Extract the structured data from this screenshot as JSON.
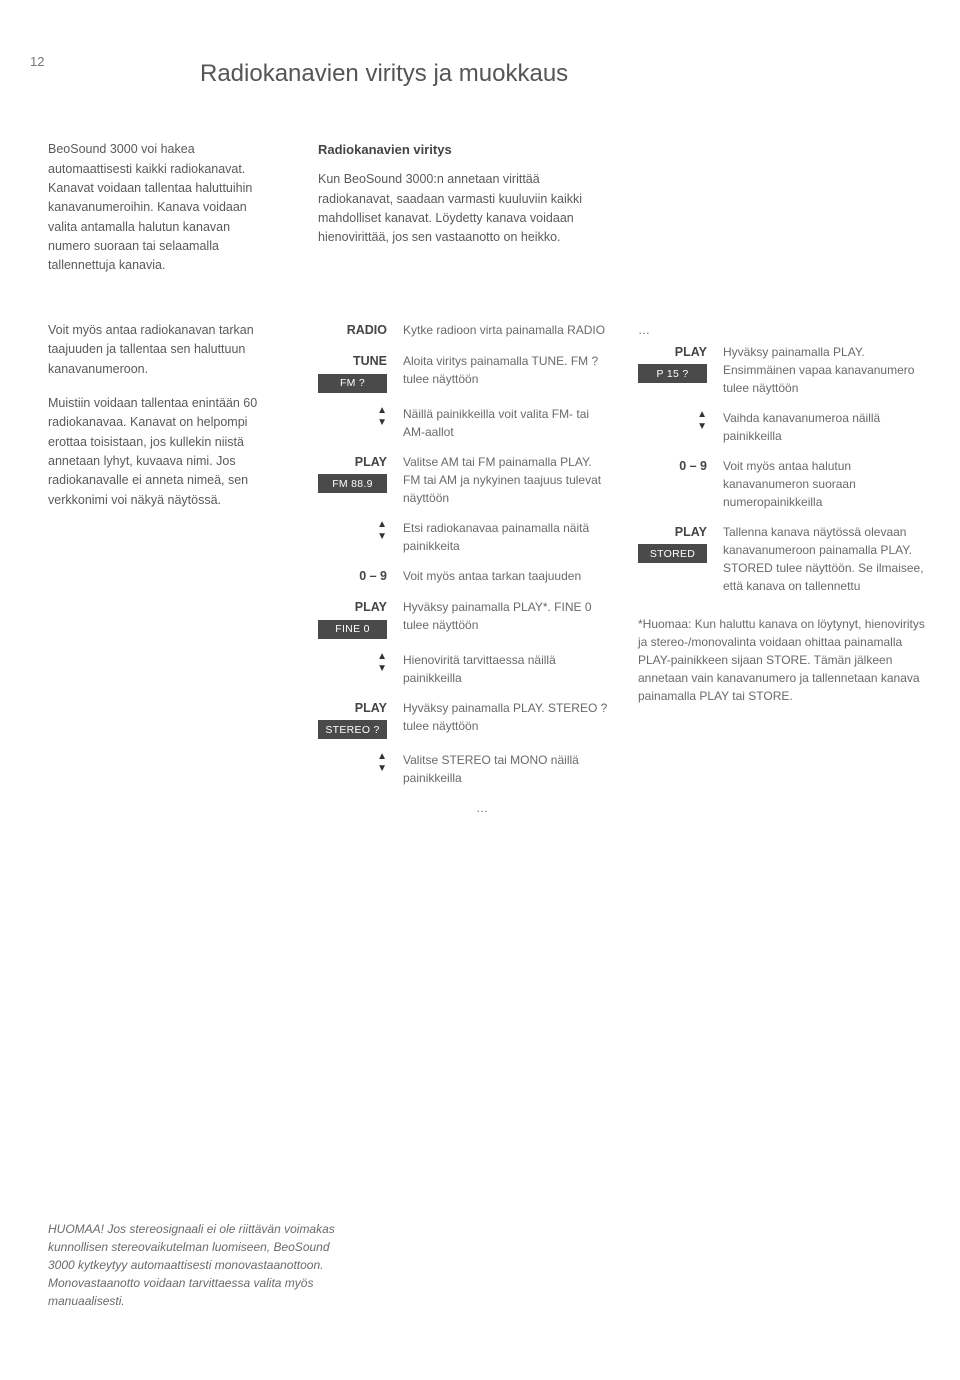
{
  "page_number": "12",
  "title": "Radiokanavien viritys ja muokkaus",
  "intro_left": {
    "p1": "BeoSound 3000 voi hakea automaattisesti kaikki radiokanavat. Kanavat voidaan tallentaa haluttuihin kanavanumeroihin. Kanava voidaan valita antamalla halutun kanavan numero suoraan tai selaamalla tallennettuja kanavia."
  },
  "intro_right": {
    "heading": "Radiokanavien viritys",
    "p1": "Kun BeoSound 3000:n annetaan virittää radiokanavat, saadaan varmasti kuuluviin kaikki mahdolliset kanavat. Löydetty kanava voidaan hienovirittää, jos sen vastaanotto on heikko."
  },
  "side_text": {
    "p1": "Voit myös antaa radiokanavan tarkan taajuuden ja tallentaa sen haluttuun kanavanumeroon.",
    "p2": "Muistiin voidaan tallentaa enintään 60 radiokanavaa. Kanavat on helpompi erottaa toisistaan, jos kullekin niistä annetaan lyhyt, kuvaava nimi. Jos radiokanavalle ei anneta nimeä, sen verkkonimi voi näkyä näytössä."
  },
  "ellipsis": "…",
  "steps_left": [
    {
      "label": "RADIO",
      "disp": "",
      "arrows": false,
      "desc": "Kytke radioon virta painamalla RADIO"
    },
    {
      "label": "TUNE",
      "disp": "FM ?",
      "arrows": false,
      "desc": "Aloita viritys painamalla TUNE. FM ? tulee näyttöön"
    },
    {
      "label": "",
      "disp": "",
      "arrows": true,
      "desc": "Näillä painikkeilla voit valita FM- tai AM-aallot"
    },
    {
      "label": "PLAY",
      "disp": "FM 88.9",
      "arrows": false,
      "desc": "Valitse AM tai FM painamalla PLAY. FM tai AM ja nykyinen taajuus tulevat näyttöön"
    },
    {
      "label": "",
      "disp": "",
      "arrows": true,
      "desc": "Etsi radiokanavaa painamalla näitä painikkeita"
    },
    {
      "label": "0 – 9",
      "disp": "",
      "arrows": false,
      "desc": "Voit myös antaa tarkan taajuuden"
    },
    {
      "label": "PLAY",
      "disp": "FINE 0",
      "arrows": false,
      "desc": "Hyväksy painamalla PLAY*. FINE 0 tulee näyttöön"
    },
    {
      "label": "",
      "disp": "",
      "arrows": true,
      "desc": "Hienoviritä tarvittaessa näillä painikkeilla"
    },
    {
      "label": "PLAY",
      "disp": "STEREO ?",
      "arrows": false,
      "desc": "Hyväksy painamalla PLAY. STEREO ? tulee näyttöön"
    },
    {
      "label": "",
      "disp": "",
      "arrows": true,
      "desc": "Valitse STEREO tai MONO näillä painikkeilla"
    }
  ],
  "steps_right": [
    {
      "label": "PLAY",
      "disp": "P 15 ?",
      "arrows": false,
      "desc": "Hyväksy painamalla PLAY. Ensimmäinen vapaa kanavanumero tulee näyttöön"
    },
    {
      "label": "",
      "disp": "",
      "arrows": true,
      "desc": "Vaihda kanavanumeroa näillä painikkeilla"
    },
    {
      "label": "0 – 9",
      "disp": "",
      "arrows": false,
      "desc": "Voit myös antaa halutun kanavanumeron suoraan numeropainikkeilla"
    },
    {
      "label": "PLAY",
      "disp": "STORED",
      "arrows": false,
      "desc": "Tallenna kanava näytössä olevaan kanavanumeroon painamalla PLAY. STORED tulee näyttöön. Se ilmaisee, että kanava on tallennettu"
    }
  ],
  "footnote": "*Huomaa: Kun haluttu kanava on löytynyt, hienoviritys ja stereo-/monovalinta voidaan ohittaa painamalla PLAY-painikkeen sijaan STORE. Tämän jälkeen annetaan vain kanavanumero ja tallennetaan kanava painamalla PLAY tai STORE.",
  "bottom_note": "HUOMAA! Jos stereosignaali ei ole riittävän voimakas kunnollisen stereovaikutelman luomiseen, BeoSound 3000 kytkeytyy automaattisesti monovastaanottoon. Monovastaanotto voidaan tarvittaessa valita myös manuaalisesti."
}
